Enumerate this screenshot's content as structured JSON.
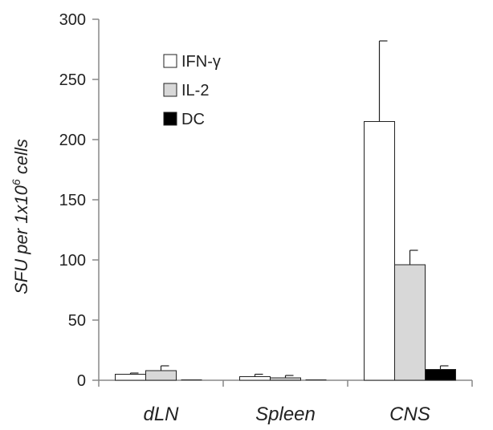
{
  "chart_data": {
    "type": "bar",
    "categories": [
      "dLN",
      "Spleen",
      "CNS"
    ],
    "series": [
      {
        "name": "IFN-γ",
        "color": "#ffffff",
        "values": [
          5,
          3,
          215
        ],
        "errors": [
          1,
          2,
          67
        ]
      },
      {
        "name": "IL-2",
        "color": "#d8d8d8",
        "values": [
          8,
          2,
          96
        ],
        "errors": [
          4,
          2,
          12
        ]
      },
      {
        "name": "DC",
        "color": "#000000",
        "values": [
          0,
          0,
          9
        ],
        "errors": [
          0,
          0,
          3
        ]
      }
    ],
    "ylabel_parts": [
      "SFU per 1x10",
      "6",
      " cells"
    ],
    "ylim": [
      0,
      300
    ],
    "yticks": [
      "0",
      "50",
      "100",
      "150",
      "200",
      "250",
      "300"
    ],
    "legend_position": "top-left",
    "grid": false
  }
}
